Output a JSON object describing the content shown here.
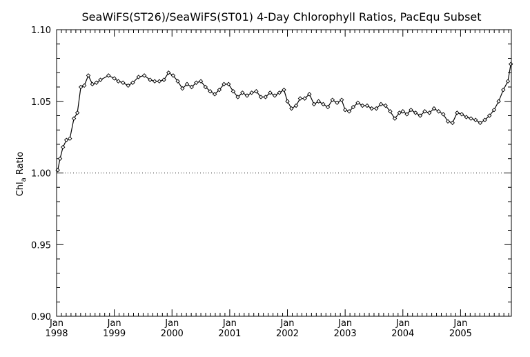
{
  "chart_data": {
    "type": "line",
    "title": "SeaWiFS(ST26)/SeaWiFS(ST01) 4-Day Chlorophyll Ratios, PacEqu Subset",
    "ylabel": "Chl_a Ratio",
    "ylim": [
      0.9,
      1.1
    ],
    "xlim": [
      1998.0,
      2005.88
    ],
    "yticks": [
      "0.90",
      "0.95",
      "1.00",
      "1.05",
      "1.10"
    ],
    "xticks": [
      {
        "x": 1998.0,
        "month": "Jan",
        "year": "1998"
      },
      {
        "x": 1999.0,
        "month": "Jan",
        "year": "1999"
      },
      {
        "x": 2000.0,
        "month": "Jan",
        "year": "2000"
      },
      {
        "x": 2001.0,
        "month": "Jan",
        "year": "2001"
      },
      {
        "x": 2002.0,
        "month": "Jan",
        "year": "2002"
      },
      {
        "x": 2003.0,
        "month": "Jan",
        "year": "2003"
      },
      {
        "x": 2004.0,
        "month": "Jan",
        "year": "2004"
      },
      {
        "x": 2005.0,
        "month": "Jan",
        "year": "2005"
      }
    ],
    "reference_line": 1.0,
    "series": [
      {
        "marker": "diamond",
        "x": [
          1998.02,
          1998.06,
          1998.11,
          1998.17,
          1998.23,
          1998.3,
          1998.36,
          1998.42,
          1998.48,
          1998.55,
          1998.62,
          1998.69,
          1998.76,
          1998.9,
          1999.0,
          1999.07,
          1999.15,
          1999.24,
          1999.32,
          1999.42,
          1999.52,
          1999.62,
          1999.7,
          1999.78,
          1999.86,
          1999.94,
          2000.02,
          2000.1,
          2000.18,
          2000.26,
          2000.34,
          2000.42,
          2000.5,
          2000.58,
          2000.66,
          2000.74,
          2000.82,
          2000.9,
          2000.98,
          2001.06,
          2001.14,
          2001.22,
          2001.3,
          2001.38,
          2001.46,
          2001.54,
          2001.62,
          2001.7,
          2001.78,
          2001.86,
          2001.94,
          2002.0,
          2002.07,
          2002.15,
          2002.22,
          2002.3,
          2002.38,
          2002.46,
          2002.54,
          2002.62,
          2002.7,
          2002.78,
          2002.86,
          2002.94,
          2003.0,
          2003.07,
          2003.14,
          2003.22,
          2003.3,
          2003.38,
          2003.46,
          2003.54,
          2003.62,
          2003.7,
          2003.78,
          2003.86,
          2003.94,
          2004.0,
          2004.07,
          2004.14,
          2004.22,
          2004.3,
          2004.38,
          2004.46,
          2004.54,
          2004.62,
          2004.7,
          2004.78,
          2004.86,
          2004.94,
          2005.02,
          2005.1,
          2005.18,
          2005.26,
          2005.34,
          2005.42,
          2005.5,
          2005.58,
          2005.66,
          2005.74,
          2005.82,
          2005.87
        ],
        "y": [
          1.002,
          1.01,
          1.018,
          1.023,
          1.024,
          1.038,
          1.042,
          1.06,
          1.061,
          1.068,
          1.062,
          1.063,
          1.065,
          1.068,
          1.066,
          1.064,
          1.063,
          1.061,
          1.063,
          1.067,
          1.068,
          1.065,
          1.064,
          1.064,
          1.065,
          1.07,
          1.068,
          1.064,
          1.059,
          1.062,
          1.06,
          1.063,
          1.064,
          1.06,
          1.057,
          1.055,
          1.058,
          1.062,
          1.062,
          1.057,
          1.053,
          1.056,
          1.054,
          1.056,
          1.057,
          1.053,
          1.053,
          1.056,
          1.054,
          1.056,
          1.058,
          1.05,
          1.045,
          1.047,
          1.052,
          1.052,
          1.055,
          1.048,
          1.05,
          1.048,
          1.046,
          1.051,
          1.049,
          1.051,
          1.044,
          1.043,
          1.046,
          1.049,
          1.047,
          1.047,
          1.045,
          1.045,
          1.048,
          1.047,
          1.043,
          1.038,
          1.042,
          1.043,
          1.041,
          1.044,
          1.042,
          1.04,
          1.043,
          1.042,
          1.045,
          1.043,
          1.041,
          1.036,
          1.035,
          1.042,
          1.041,
          1.039,
          1.038,
          1.037,
          1.035,
          1.037,
          1.04,
          1.044,
          1.05,
          1.058,
          1.064,
          1.076
        ]
      }
    ]
  }
}
